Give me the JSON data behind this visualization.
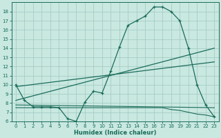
{
  "xlabel": "Humidex (Indice chaleur)",
  "bg_color": "#c8e8e0",
  "grid_color": "#a0c8bf",
  "line_color": "#1a6b5a",
  "xlim": [
    -0.5,
    23.5
  ],
  "ylim": [
    6,
    19
  ],
  "yticks": [
    6,
    7,
    8,
    9,
    10,
    11,
    12,
    13,
    14,
    15,
    16,
    17,
    18
  ],
  "xticks": [
    0,
    1,
    2,
    3,
    4,
    5,
    6,
    7,
    8,
    9,
    10,
    11,
    12,
    13,
    14,
    15,
    16,
    17,
    18,
    19,
    20,
    21,
    22,
    23
  ],
  "series1_x": [
    0,
    1,
    2,
    3,
    4,
    5,
    6,
    7,
    8,
    9,
    10,
    11,
    12,
    13,
    14,
    15,
    16,
    17,
    18,
    19,
    20,
    21,
    22,
    23
  ],
  "series1_y": [
    10.0,
    8.3,
    7.6,
    7.6,
    7.6,
    7.5,
    6.3,
    6.0,
    8.1,
    9.3,
    9.1,
    11.5,
    14.1,
    16.5,
    17.0,
    17.5,
    18.5,
    18.5,
    18.0,
    17.0,
    14.0,
    10.0,
    7.8,
    6.5
  ],
  "series2_x": [
    0,
    23
  ],
  "series2_y": [
    8.3,
    14.0
  ],
  "series3_x": [
    0,
    23
  ],
  "series3_y": [
    9.8,
    12.5
  ],
  "series4_x": [
    0,
    23
  ],
  "series4_y": [
    7.8,
    7.5
  ],
  "series5_x": [
    0,
    14,
    15,
    16,
    17,
    18,
    19,
    20,
    21,
    22,
    23
  ],
  "series5_y": [
    7.5,
    7.5,
    7.5,
    7.5,
    7.5,
    7.3,
    7.2,
    7.0,
    6.8,
    6.7,
    6.5
  ]
}
